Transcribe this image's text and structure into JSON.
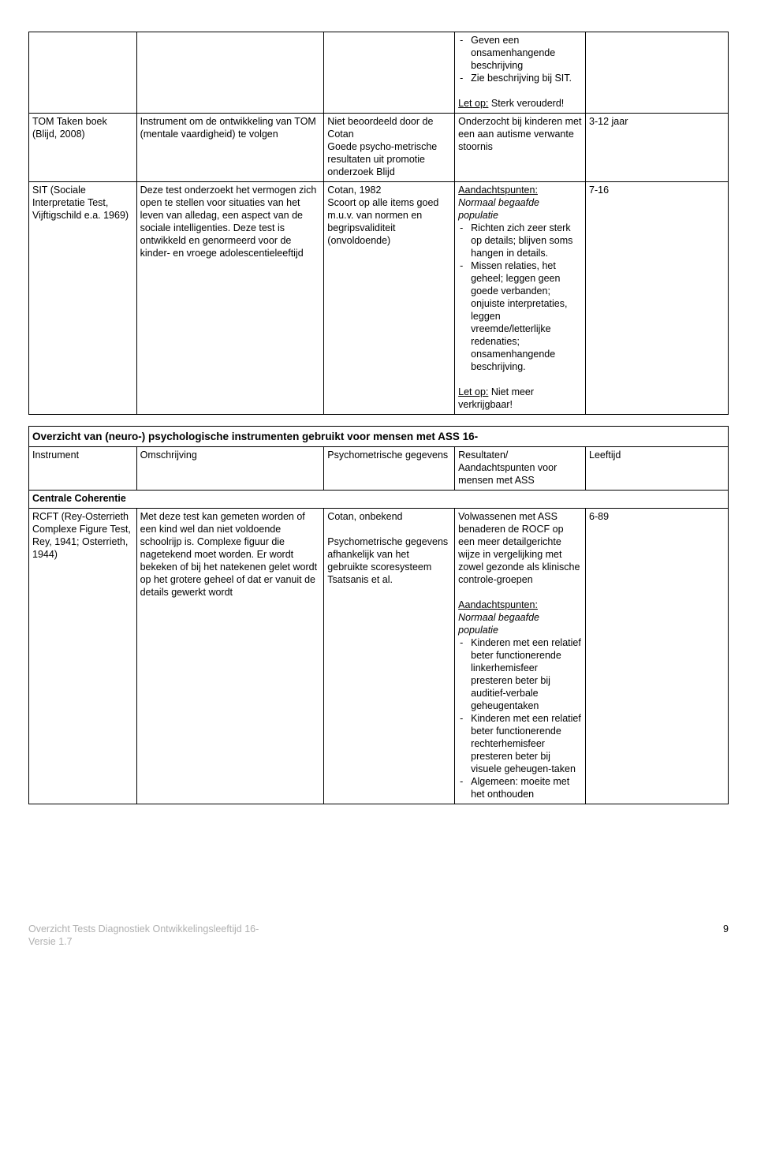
{
  "table1": {
    "row0": {
      "c4": {
        "bullets": [
          "Geven een onsamenhangende beschrijving",
          "Zie beschrijving bij SIT."
        ],
        "letop_label": "Let op:",
        "letop_text": " Sterk verouderd!"
      }
    },
    "row1": {
      "c1": "TOM Taken boek (Blijd, 2008)",
      "c2": "Instrument om de ontwikkeling van TOM (mentale vaardigheid) te volgen",
      "c3": "Niet beoordeeld door de Cotan\nGoede psycho-metrische resultaten uit promotie onderzoek Blijd",
      "c4": "Onderzocht bij kinderen met een aan autisme verwante stoornis",
      "c5": "3-12 jaar"
    },
    "row2": {
      "c1": "SIT (Sociale Interpretatie Test, Vijftigschild e.a. 1969)",
      "c2": "Deze  test onderzoekt het vermogen zich open te stellen voor situaties van het leven van alledag, een aspect van de sociale intelligenties. Deze test is ontwikkeld en genormeerd voor de kinder- en vroege adolescentieleeftijd",
      "c3": "Cotan, 1982\nScoort op alle items goed m.u.v. van normen en begripsvaliditeit (onvoldoende)",
      "c4": {
        "aandachts_label": "Aandachtspunten:",
        "pop_ital": "Normaal begaafde populatie",
        "bullets": [
          "Richten zich zeer sterk op details; blijven soms hangen in details.",
          "Missen relaties, het geheel; leggen geen goede verbanden; onjuiste interpretaties, leggen vreemde/letterlijke redenaties; onsamenhangende beschrijving."
        ],
        "letop_label": "Let op:",
        "letop_text": " Niet meer verkrijgbaar!"
      },
      "c5": "7-16"
    }
  },
  "table2": {
    "header": "Overzicht van (neuro-) psychologische instrumenten gebruikt voor mensen met ASS 16-",
    "cols": {
      "c1": "Instrument",
      "c2": "Omschrijving",
      "c3": "Psychometrische gegevens",
      "c4": "Resultaten/ Aandachtspunten voor mensen met ASS",
      "c5": "Leeftijd"
    },
    "subhead": "Centrale Coherentie",
    "row1": {
      "c1": "RCFT (Rey-Osterrieth Complexe Figure Test, Rey, 1941; Osterrieth, 1944)",
      "c2": "Met deze test kan gemeten worden of een kind wel dan niet voldoende schoolrijp is. Complexe figuur die nagetekend moet worden. Er wordt bekeken of bij het natekenen gelet wordt op het grotere geheel of dat er vanuit de details gewerkt wordt",
      "c3": "Cotan, onbekend\n\nPsychometrische gegevens afhankelijk van het gebruikte scoresysteem Tsatsanis et al.",
      "c4": {
        "intro": "Volwassenen met ASS benaderen de ROCF op een meer detailgerichte wijze in vergelijking met zowel gezonde als klinische controle-groepen",
        "aandachts_label": "Aandachtspunten:",
        "pop_ital": "Normaal begaafde populatie",
        "bullets": [
          "Kinderen met een relatief beter functionerende linkerhemisfeer presteren beter bij auditief-verbale geheugentaken",
          "Kinderen met een relatief beter functionerende rechterhemisfeer presteren beter bij visuele geheugen-taken",
          "Algemeen: moeite met het onthouden"
        ]
      },
      "c5": "6-89"
    }
  },
  "footer": {
    "left_line1": "Overzicht Tests Diagnostiek Ontwikkelingsleeftijd 16-",
    "left_line2": "Versie 1.7",
    "page": "9"
  }
}
